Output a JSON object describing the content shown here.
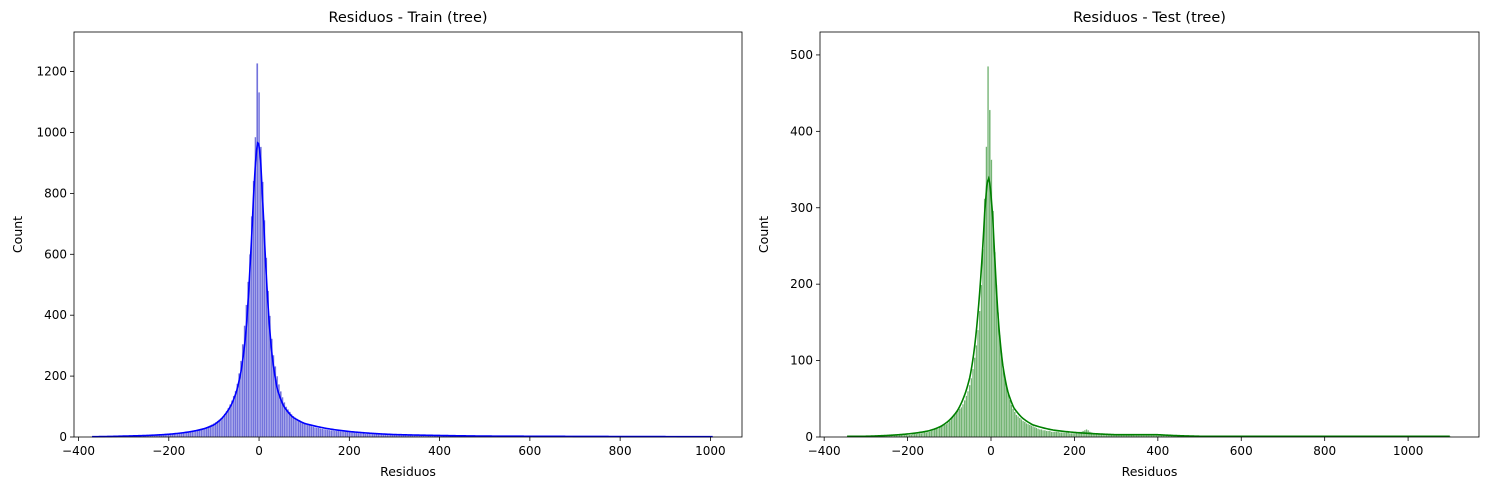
{
  "chart_data": [
    {
      "type": "bar",
      "subtype": "histogram-with-kde",
      "title": "Residuos - Train (tree)",
      "xlabel": "Residuos",
      "ylabel": "Count",
      "xlim": [
        -410,
        1070
      ],
      "ylim": [
        0,
        1330
      ],
      "xticks": [
        -400,
        -200,
        0,
        200,
        400,
        600,
        800,
        1000
      ],
      "yticks": [
        0,
        200,
        400,
        600,
        800,
        1000,
        1200
      ],
      "bar_color": "#5b5bd6",
      "line_color": "#0000ff",
      "grid": false,
      "range": [
        -370,
        1005
      ],
      "bins": [
        {
          "x": -370,
          "y": 1
        },
        {
          "x": -300,
          "y": 2
        },
        {
          "x": -250,
          "y": 4
        },
        {
          "x": -200,
          "y": 8
        },
        {
          "x": -175,
          "y": 12
        },
        {
          "x": -150,
          "y": 18
        },
        {
          "x": -125,
          "y": 28
        },
        {
          "x": -100,
          "y": 45
        },
        {
          "x": -90,
          "y": 55
        },
        {
          "x": -80,
          "y": 68
        },
        {
          "x": -70,
          "y": 90
        },
        {
          "x": -60,
          "y": 120
        },
        {
          "x": -50,
          "y": 160
        },
        {
          "x": -45,
          "y": 200
        },
        {
          "x": -40,
          "y": 250
        },
        {
          "x": -35,
          "y": 320
        },
        {
          "x": -30,
          "y": 400
        },
        {
          "x": -25,
          "y": 490
        },
        {
          "x": -20,
          "y": 600
        },
        {
          "x": -15,
          "y": 760
        },
        {
          "x": -10,
          "y": 900
        },
        {
          "x": -7,
          "y": 1030
        },
        {
          "x": -5,
          "y": 1200
        },
        {
          "x": -3,
          "y": 1255
        },
        {
          "x": -1,
          "y": 1220
        },
        {
          "x": 1,
          "y": 1050
        },
        {
          "x": 3,
          "y": 980
        },
        {
          "x": 6,
          "y": 900
        },
        {
          "x": 10,
          "y": 780
        },
        {
          "x": 15,
          "y": 620
        },
        {
          "x": 20,
          "y": 480
        },
        {
          "x": 25,
          "y": 380
        },
        {
          "x": 30,
          "y": 290
        },
        {
          "x": 40,
          "y": 200
        },
        {
          "x": 50,
          "y": 140
        },
        {
          "x": 60,
          "y": 100
        },
        {
          "x": 75,
          "y": 70
        },
        {
          "x": 100,
          "y": 45
        },
        {
          "x": 125,
          "y": 32
        },
        {
          "x": 150,
          "y": 24
        },
        {
          "x": 175,
          "y": 20
        },
        {
          "x": 200,
          "y": 16
        },
        {
          "x": 250,
          "y": 10
        },
        {
          "x": 300,
          "y": 7
        },
        {
          "x": 400,
          "y": 4
        },
        {
          "x": 500,
          "y": 3
        },
        {
          "x": 600,
          "y": 2
        },
        {
          "x": 700,
          "y": 1
        },
        {
          "x": 800,
          "y": 1
        },
        {
          "x": 900,
          "y": 1
        },
        {
          "x": 1005,
          "y": 1
        }
      ],
      "kde": [
        {
          "x": -370,
          "y": 1
        },
        {
          "x": -300,
          "y": 3
        },
        {
          "x": -250,
          "y": 5
        },
        {
          "x": -200,
          "y": 9
        },
        {
          "x": -150,
          "y": 18
        },
        {
          "x": -120,
          "y": 28
        },
        {
          "x": -100,
          "y": 40
        },
        {
          "x": -80,
          "y": 65
        },
        {
          "x": -60,
          "y": 110
        },
        {
          "x": -50,
          "y": 150
        },
        {
          "x": -40,
          "y": 215
        },
        {
          "x": -30,
          "y": 330
        },
        {
          "x": -20,
          "y": 560
        },
        {
          "x": -12,
          "y": 800
        },
        {
          "x": -7,
          "y": 925
        },
        {
          "x": -3,
          "y": 970
        },
        {
          "x": 0,
          "y": 960
        },
        {
          "x": 4,
          "y": 900
        },
        {
          "x": 10,
          "y": 720
        },
        {
          "x": 18,
          "y": 480
        },
        {
          "x": 28,
          "y": 280
        },
        {
          "x": 40,
          "y": 160
        },
        {
          "x": 55,
          "y": 100
        },
        {
          "x": 75,
          "y": 65
        },
        {
          "x": 100,
          "y": 45
        },
        {
          "x": 150,
          "y": 28
        },
        {
          "x": 200,
          "y": 18
        },
        {
          "x": 300,
          "y": 8
        },
        {
          "x": 400,
          "y": 5
        },
        {
          "x": 500,
          "y": 3
        },
        {
          "x": 700,
          "y": 2
        },
        {
          "x": 1005,
          "y": 1
        }
      ]
    },
    {
      "type": "bar",
      "subtype": "histogram-with-kde",
      "title": "Residuos - Test (tree)",
      "xlabel": "Residuos",
      "ylabel": "Count",
      "xlim": [
        -410,
        1170
      ],
      "ylim": [
        0,
        530
      ],
      "xticks": [
        -400,
        -200,
        0,
        200,
        400,
        600,
        800,
        1000
      ],
      "yticks": [
        0,
        100,
        200,
        300,
        400,
        500
      ],
      "bar_color": "#5aa75a",
      "line_color": "#008000",
      "grid": false,
      "range": [
        -345,
        1100
      ],
      "bins": [
        {
          "x": -345,
          "y": 1
        },
        {
          "x": -300,
          "y": 1
        },
        {
          "x": -250,
          "y": 2
        },
        {
          "x": -200,
          "y": 3
        },
        {
          "x": -150,
          "y": 7
        },
        {
          "x": -125,
          "y": 12
        },
        {
          "x": -100,
          "y": 20
        },
        {
          "x": -90,
          "y": 28
        },
        {
          "x": -80,
          "y": 34
        },
        {
          "x": -70,
          "y": 40
        },
        {
          "x": -60,
          "y": 52
        },
        {
          "x": -50,
          "y": 70
        },
        {
          "x": -45,
          "y": 82
        },
        {
          "x": -40,
          "y": 100
        },
        {
          "x": -35,
          "y": 120
        },
        {
          "x": -30,
          "y": 145
        },
        {
          "x": -25,
          "y": 180
        },
        {
          "x": -20,
          "y": 230
        },
        {
          "x": -17,
          "y": 280
        },
        {
          "x": -14,
          "y": 330
        },
        {
          "x": -11,
          "y": 380
        },
        {
          "x": -8,
          "y": 465
        },
        {
          "x": -6,
          "y": 505
        },
        {
          "x": -4,
          "y": 470
        },
        {
          "x": -2,
          "y": 390
        },
        {
          "x": 0,
          "y": 380
        },
        {
          "x": 3,
          "y": 330
        },
        {
          "x": 6,
          "y": 280
        },
        {
          "x": 10,
          "y": 230
        },
        {
          "x": 15,
          "y": 180
        },
        {
          "x": 20,
          "y": 140
        },
        {
          "x": 25,
          "y": 110
        },
        {
          "x": 30,
          "y": 85
        },
        {
          "x": 40,
          "y": 60
        },
        {
          "x": 50,
          "y": 40
        },
        {
          "x": 60,
          "y": 30
        },
        {
          "x": 75,
          "y": 22
        },
        {
          "x": 100,
          "y": 14
        },
        {
          "x": 125,
          "y": 9
        },
        {
          "x": 150,
          "y": 7
        },
        {
          "x": 200,
          "y": 5
        },
        {
          "x": 230,
          "y": 10
        },
        {
          "x": 250,
          "y": 4
        },
        {
          "x": 300,
          "y": 3
        },
        {
          "x": 400,
          "y": 2
        },
        {
          "x": 500,
          "y": 1
        },
        {
          "x": 600,
          "y": 1
        },
        {
          "x": 800,
          "y": 1
        },
        {
          "x": 1100,
          "y": 1
        }
      ],
      "kde": [
        {
          "x": -345,
          "y": 1
        },
        {
          "x": -300,
          "y": 1
        },
        {
          "x": -250,
          "y": 2
        },
        {
          "x": -200,
          "y": 4
        },
        {
          "x": -150,
          "y": 8
        },
        {
          "x": -120,
          "y": 14
        },
        {
          "x": -100,
          "y": 22
        },
        {
          "x": -80,
          "y": 35
        },
        {
          "x": -60,
          "y": 60
        },
        {
          "x": -50,
          "y": 80
        },
        {
          "x": -40,
          "y": 115
        },
        {
          "x": -30,
          "y": 170
        },
        {
          "x": -22,
          "y": 230
        },
        {
          "x": -15,
          "y": 295
        },
        {
          "x": -10,
          "y": 330
        },
        {
          "x": -6,
          "y": 340
        },
        {
          "x": -2,
          "y": 330
        },
        {
          "x": 4,
          "y": 290
        },
        {
          "x": 10,
          "y": 225
        },
        {
          "x": 18,
          "y": 150
        },
        {
          "x": 28,
          "y": 95
        },
        {
          "x": 40,
          "y": 60
        },
        {
          "x": 55,
          "y": 38
        },
        {
          "x": 75,
          "y": 25
        },
        {
          "x": 100,
          "y": 16
        },
        {
          "x": 150,
          "y": 9
        },
        {
          "x": 200,
          "y": 6
        },
        {
          "x": 300,
          "y": 3
        },
        {
          "x": 400,
          "y": 3
        },
        {
          "x": 500,
          "y": 1
        },
        {
          "x": 700,
          "y": 1
        },
        {
          "x": 1100,
          "y": 1
        }
      ]
    }
  ]
}
